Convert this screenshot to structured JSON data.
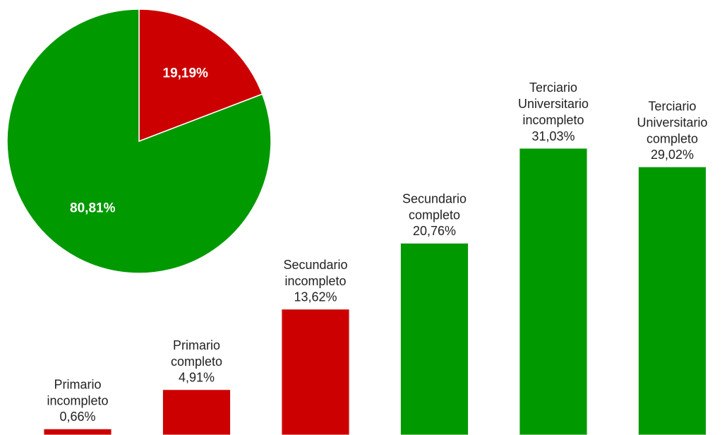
{
  "chart_data": [
    {
      "type": "pie",
      "values": [
        19.19,
        80.81
      ],
      "value_labels": [
        "19,19%",
        "80,81%"
      ],
      "colors": [
        "#cc0000",
        "#009900"
      ]
    },
    {
      "type": "bar",
      "categories": [
        "Primario incompleto",
        "Primario completo",
        "Secundario incompleto",
        "Secundario completo",
        "Terciario Universitario incompleto",
        "Terciario Universitario completo"
      ],
      "values": [
        0.66,
        4.91,
        13.62,
        20.76,
        31.03,
        29.02
      ],
      "value_labels": [
        "0,66%",
        "4,91%",
        "13,62%",
        "20,76%",
        "31,03%",
        "29,02%"
      ],
      "colors": [
        "#cc0000",
        "#cc0000",
        "#cc0000",
        "#009900",
        "#009900",
        "#009900"
      ]
    }
  ]
}
